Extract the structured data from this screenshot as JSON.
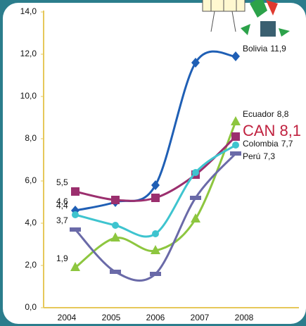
{
  "chart_data": {
    "type": "line",
    "categories": [
      "2004",
      "2005",
      "2006",
      "2007",
      "2008"
    ],
    "ylim": [
      0,
      14
    ],
    "yticks": [
      {
        "value": 0,
        "label": "0,0"
      },
      {
        "value": 2,
        "label": "2,0"
      },
      {
        "value": 4,
        "label": "4,0"
      },
      {
        "value": 6,
        "label": "6,0"
      },
      {
        "value": 8,
        "label": "8,0"
      },
      {
        "value": 10,
        "label": "10,0"
      },
      {
        "value": 12,
        "label": "12,0"
      },
      {
        "value": 14,
        "label": "14,0"
      }
    ],
    "series": [
      {
        "name": "Bolivia",
        "color": "#1f5fb5",
        "marker": "diamond",
        "values": [
          4.6,
          5.0,
          5.8,
          11.6,
          11.9
        ],
        "value_labels": [
          "4,6",
          null,
          null,
          null,
          "11,9"
        ]
      },
      {
        "name": "Ecuador",
        "color": "#8dc63f",
        "marker": "triangle",
        "values": [
          1.9,
          3.3,
          2.7,
          4.2,
          8.8
        ],
        "value_labels": [
          "1,9",
          null,
          null,
          null,
          "8,8"
        ]
      },
      {
        "name": "CAN",
        "color": "#9b2f6e",
        "marker": "square",
        "values": [
          5.5,
          5.1,
          5.2,
          6.3,
          8.1
        ],
        "value_labels": [
          "5,5",
          null,
          null,
          null,
          "8,1"
        ]
      },
      {
        "name": "Colombia",
        "color": "#3ec4cf",
        "marker": "circle",
        "values": [
          4.4,
          3.9,
          3.5,
          6.4,
          7.7
        ],
        "value_labels": [
          "4,4",
          null,
          null,
          null,
          "7,7"
        ]
      },
      {
        "name": "Perú",
        "color": "#6a6aa8",
        "marker": "dash",
        "values": [
          3.7,
          1.7,
          1.6,
          5.2,
          7.3
        ],
        "value_labels": [
          "3,7",
          null,
          null,
          null,
          "7,3"
        ]
      }
    ]
  }
}
